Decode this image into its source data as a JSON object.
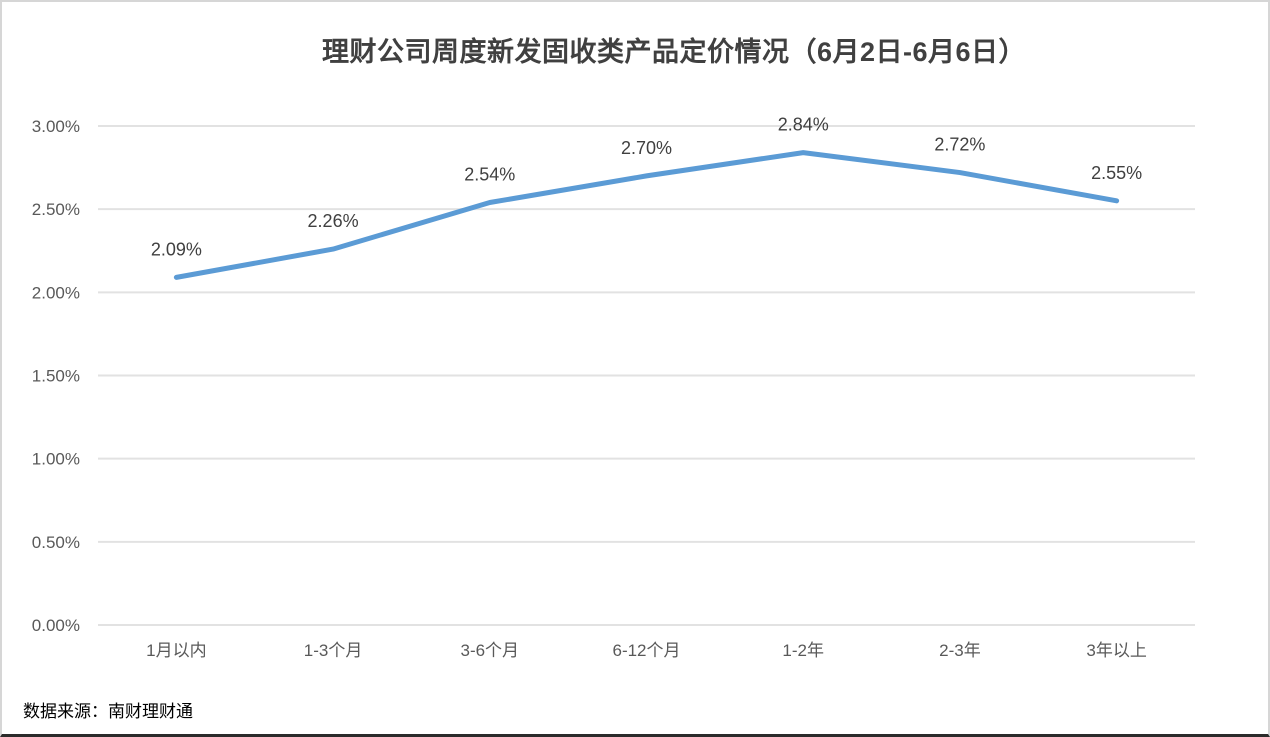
{
  "chart": {
    "title": "理财公司周度新发固收类产品定价情况（6月2日-6月6日）",
    "source_note": "数据来源：南财理财通"
  },
  "chart_data": {
    "type": "line",
    "title": "理财公司周度新发固收类产品定价情况（6月2日-6月6日）",
    "categories": [
      "1月以内",
      "1-3个月",
      "3-6个月",
      "6-12个月",
      "1-2年",
      "2-3年",
      "3年以上"
    ],
    "series": [
      {
        "name": "周度新发固收类产品定价",
        "values": [
          2.09,
          2.26,
          2.54,
          2.7,
          2.84,
          2.72,
          2.55
        ],
        "labels": [
          "2.09%",
          "2.26%",
          "2.54%",
          "2.70%",
          "2.84%",
          "2.72%",
          "2.55%"
        ]
      }
    ],
    "xlabel": "",
    "ylabel": "",
    "ylim": [
      0,
      3.0
    ],
    "ytick_interval": 0.5,
    "yticks": [
      "0.00%",
      "0.50%",
      "1.00%",
      "1.50%",
      "2.00%",
      "2.50%",
      "3.00%"
    ],
    "grid": "horizontal-only",
    "legend": "none",
    "line_color": "#5B9BD5",
    "gridline_color": "#E2E2E2",
    "axis_label_color": "#595959",
    "data_label_color": "#404040",
    "source": "数据来源：南财理财通"
  }
}
